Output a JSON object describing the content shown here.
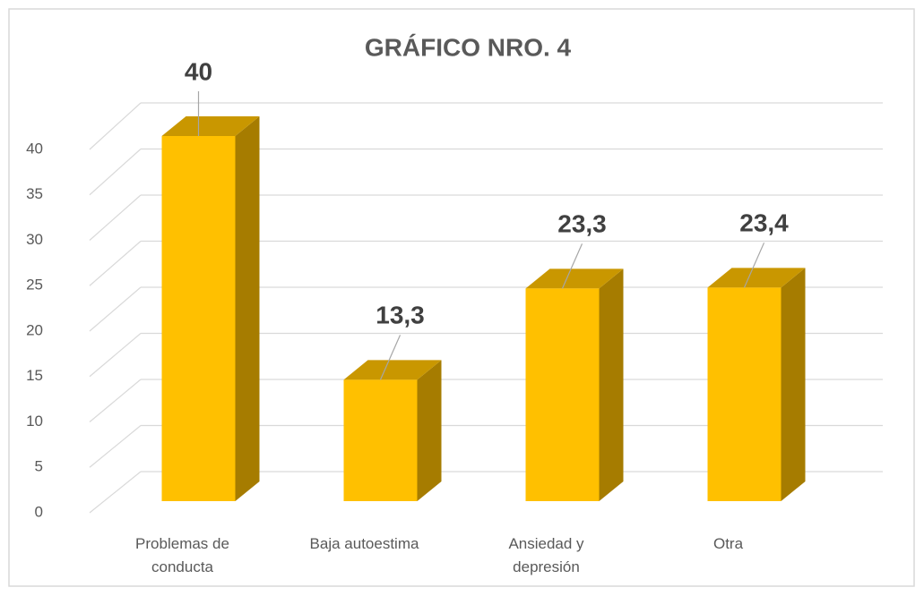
{
  "chart_data": {
    "type": "bar3d",
    "title": "GRÁFICO NRO. 4",
    "categories": [
      "Problemas de conducta",
      "Baja autoestima",
      "Ansiedad y depresión",
      "Otra"
    ],
    "values": [
      40,
      13.3,
      23.3,
      23.4
    ],
    "value_labels": [
      "40",
      "13,3",
      "23,3",
      "23,4"
    ],
    "color": "#ffc000",
    "ylim": [
      0,
      40
    ],
    "yticks": [
      0,
      5,
      10,
      15,
      20,
      25,
      30,
      35,
      40
    ],
    "grid": true
  }
}
